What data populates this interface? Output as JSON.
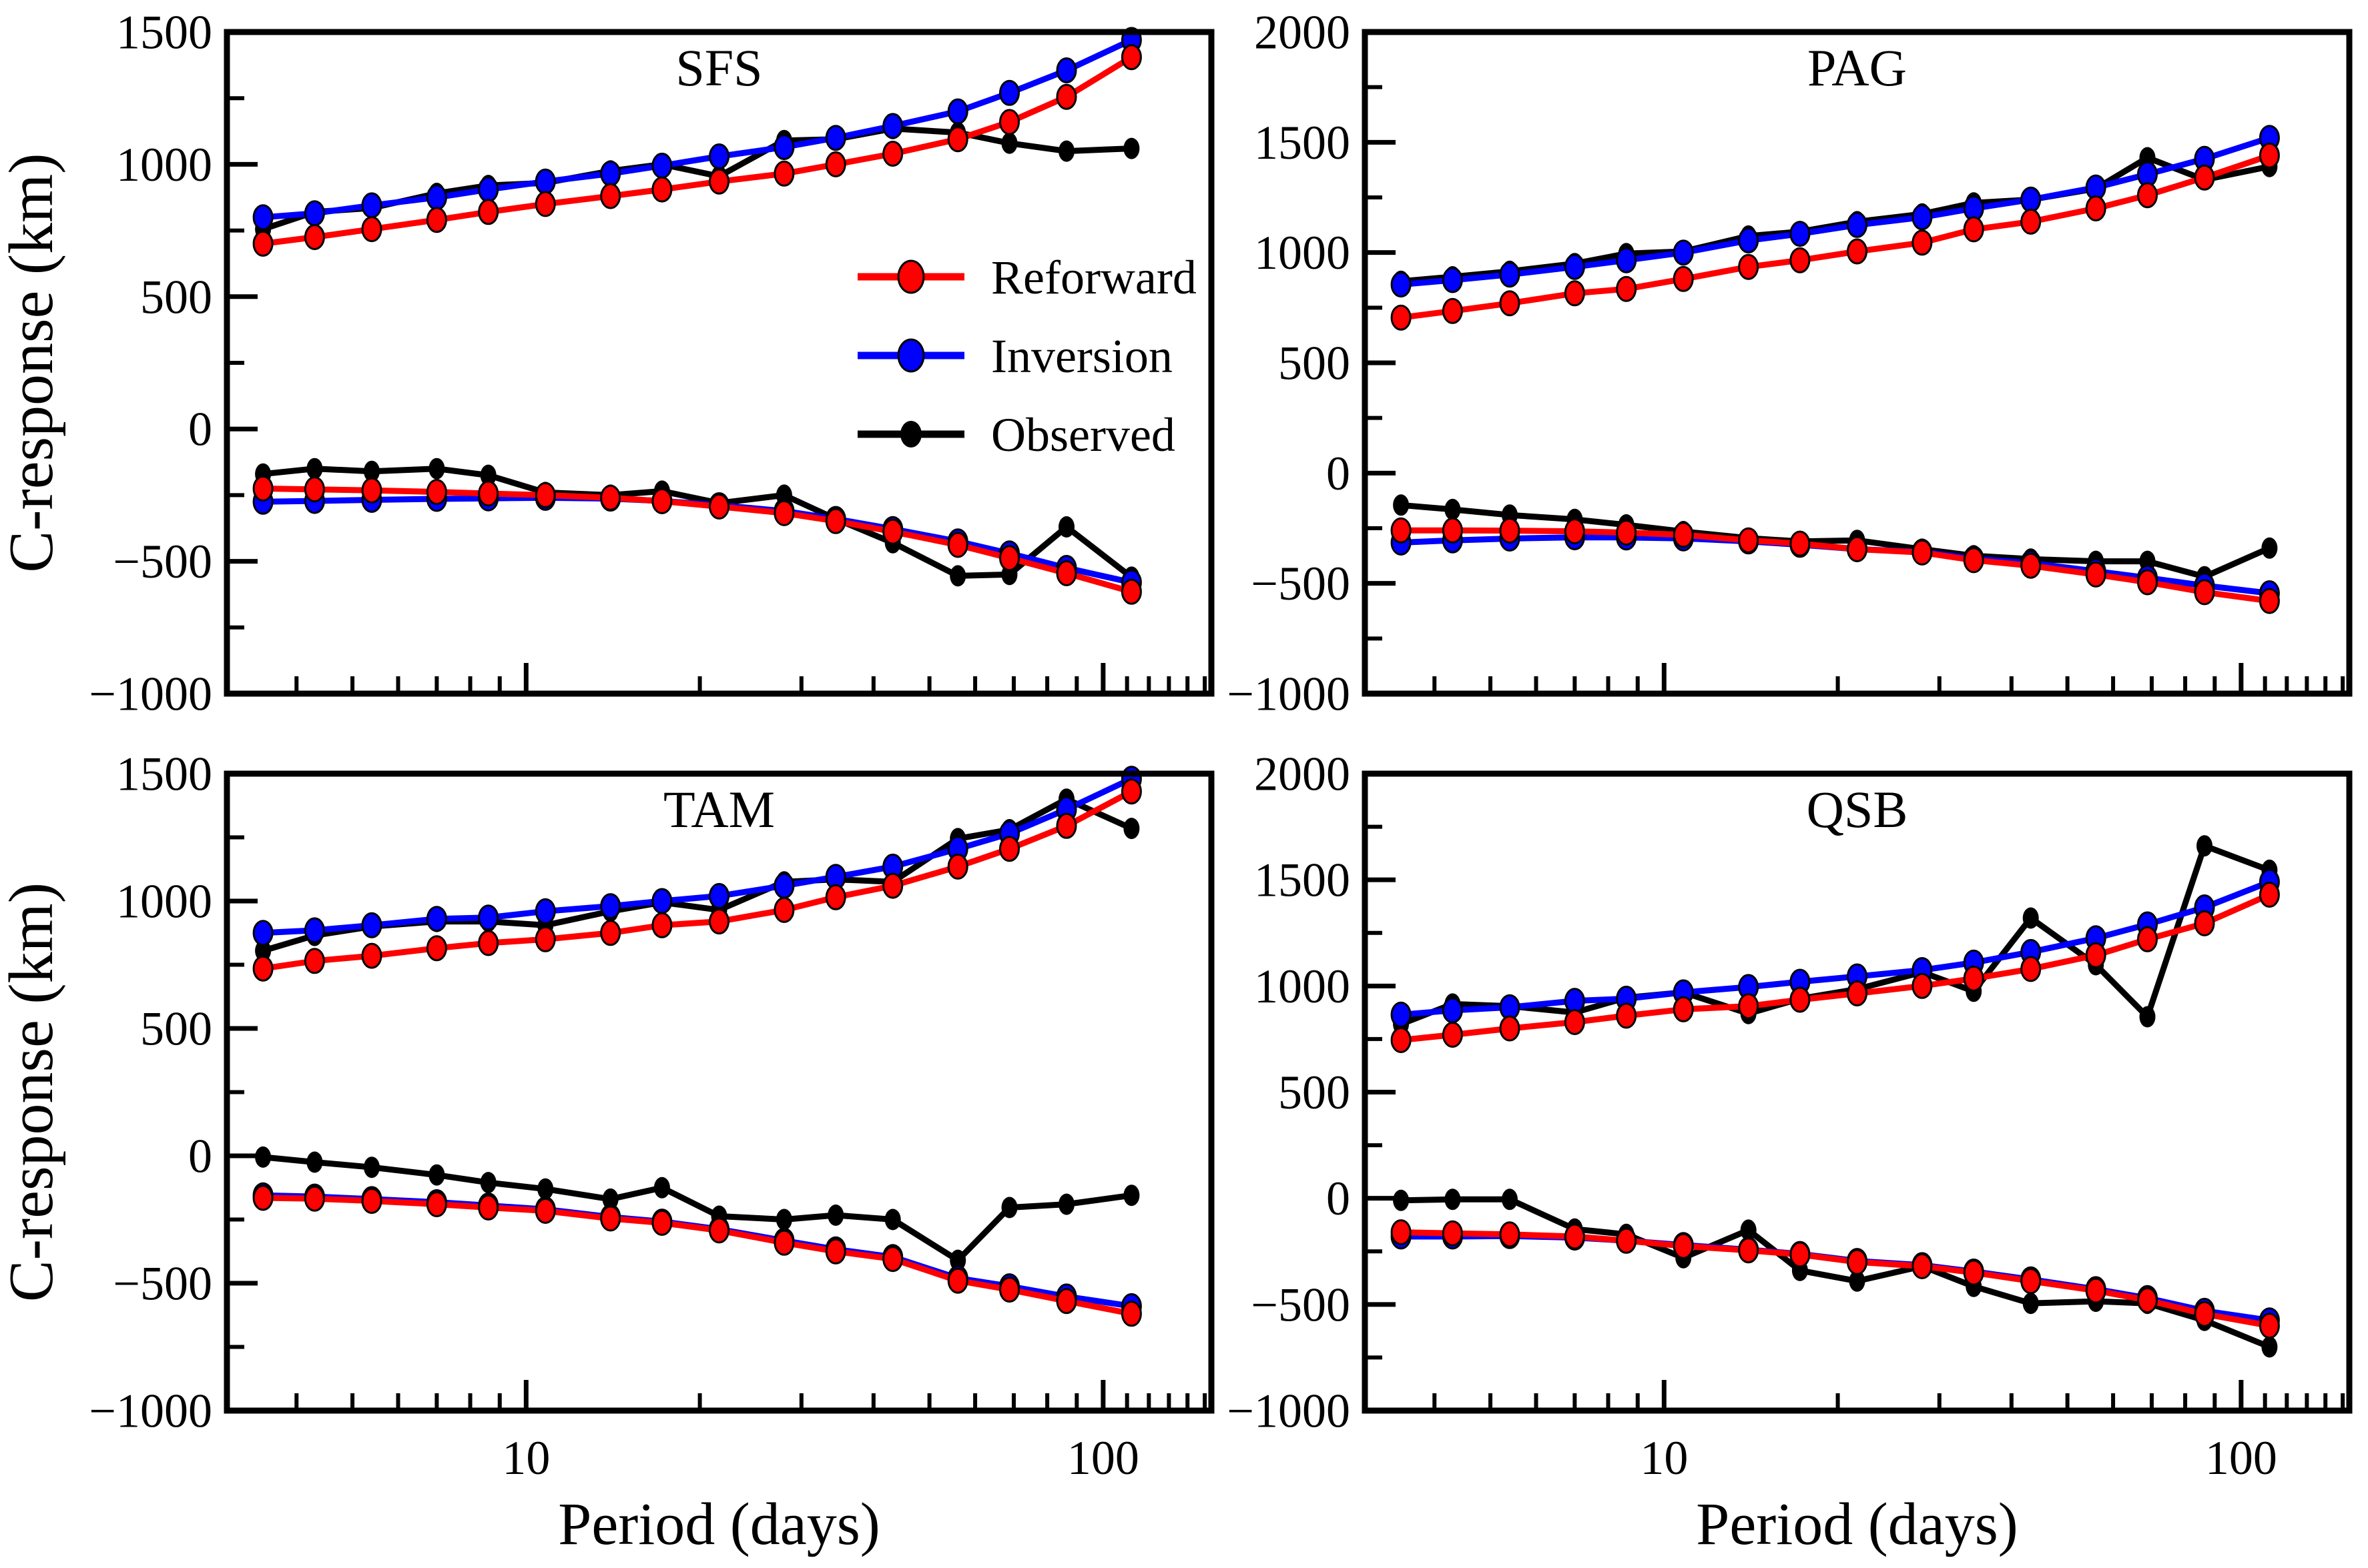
{
  "figure": {
    "background": "#ffffff",
    "xlabel": "Period (days)",
    "ylabel": "C-response (km)",
    "xtick_labels": [
      "10",
      "100"
    ],
    "legend": {
      "items": [
        {
          "label": "Reforward",
          "color": "#ff0000"
        },
        {
          "label": "Inversion",
          "color": "#0000ff"
        },
        {
          "label": "Observed",
          "color": "#000000"
        }
      ]
    }
  },
  "chart_data": [
    {
      "type": "line",
      "title": "SFS",
      "grid": {
        "row": 0,
        "col": 0
      },
      "xscale": "log",
      "xlabel": "Period (days)",
      "ylabel": "C-response (km)",
      "xlim": [
        3.03,
        154
      ],
      "ylim": [
        -1000,
        1500
      ],
      "x_days": [
        3.5,
        4.3,
        5.4,
        7.0,
        8.6,
        10.8,
        14,
        17.2,
        21.6,
        28,
        34.4,
        43.2,
        56,
        68.8,
        86.4,
        112
      ],
      "xticks_major_days": [
        10,
        100
      ],
      "xticks_minor_days": [
        4,
        5,
        6,
        7,
        8,
        9,
        20,
        30,
        40,
        50,
        60,
        70,
        80,
        90,
        110,
        120,
        130,
        140,
        150
      ],
      "ytick_values": [
        1500,
        1000,
        500,
        0,
        -500,
        -1000
      ],
      "ytick_labels": [
        "1500",
        "1000",
        "500",
        "0",
        "−500",
        "−1000"
      ],
      "ytick_minor_values": [
        1250,
        750,
        250,
        -250,
        -750
      ],
      "show_legend": true,
      "series": [
        {
          "name": "Observed",
          "color": "#000000",
          "real": [
            755,
            820,
            835,
            890,
            920,
            930,
            975,
            1000,
            955,
            1090,
            1095,
            1135,
            1120,
            1080,
            1050,
            1060
          ],
          "imag": [
            -170,
            -150,
            -160,
            -150,
            -175,
            -240,
            -250,
            -235,
            -280,
            -250,
            -340,
            -430,
            -555,
            -550,
            -370,
            -560
          ]
        },
        {
          "name": "Inversion",
          "color": "#0000ff",
          "real": [
            800,
            815,
            845,
            875,
            905,
            935,
            965,
            995,
            1030,
            1065,
            1100,
            1145,
            1200,
            1270,
            1355,
            1470
          ],
          "imag": [
            -275,
            -272,
            -268,
            -264,
            -262,
            -260,
            -263,
            -272,
            -288,
            -310,
            -340,
            -378,
            -425,
            -470,
            -525,
            -580
          ]
        },
        {
          "name": "Reforward",
          "color": "#ff0000",
          "real": [
            700,
            725,
            755,
            790,
            820,
            850,
            880,
            905,
            935,
            965,
            1000,
            1040,
            1095,
            1160,
            1255,
            1405
          ],
          "imag": [
            -225,
            -228,
            -232,
            -238,
            -244,
            -250,
            -260,
            -273,
            -293,
            -318,
            -348,
            -388,
            -438,
            -488,
            -545,
            -615
          ]
        }
      ]
    },
    {
      "type": "line",
      "title": "PAG",
      "grid": {
        "row": 0,
        "col": 1
      },
      "xscale": "log",
      "xlabel": "Period (days)",
      "ylabel": "C-response (km)",
      "xlim": [
        3.03,
        154
      ],
      "ylim": [
        -1000,
        2000
      ],
      "x_days": [
        3.5,
        4.3,
        5.4,
        7.0,
        8.6,
        10.8,
        14,
        17.2,
        21.6,
        28,
        34.4,
        43.2,
        56,
        68.8,
        86.4,
        112
      ],
      "xticks_major_days": [
        10,
        100
      ],
      "xticks_minor_days": [
        4,
        5,
        6,
        7,
        8,
        9,
        20,
        30,
        40,
        50,
        60,
        70,
        80,
        90,
        110,
        120,
        130,
        140,
        150
      ],
      "ytick_values": [
        2000,
        1500,
        1000,
        500,
        0,
        -500,
        -1000
      ],
      "ytick_labels": [
        "2000",
        "1500",
        "1000",
        "500",
        "0",
        "−500",
        "−1000"
      ],
      "ytick_minor_values": [
        1750,
        1250,
        750,
        250,
        -250,
        -750
      ],
      "show_legend": false,
      "series": [
        {
          "name": "Observed",
          "color": "#000000",
          "real": [
            870,
            890,
            915,
            950,
            995,
            1005,
            1075,
            1095,
            1140,
            1175,
            1225,
            1240,
            1290,
            1430,
            1330,
            1390
          ],
          "imag": [
            -145,
            -165,
            -190,
            -210,
            -235,
            -265,
            -295,
            -310,
            -305,
            -345,
            -375,
            -390,
            -400,
            -400,
            -470,
            -340
          ]
        },
        {
          "name": "Inversion",
          "color": "#0000ff",
          "real": [
            855,
            875,
            900,
            935,
            965,
            1000,
            1055,
            1085,
            1125,
            1160,
            1200,
            1240,
            1295,
            1355,
            1425,
            1520
          ],
          "imag": [
            -315,
            -305,
            -297,
            -291,
            -292,
            -296,
            -310,
            -325,
            -345,
            -357,
            -388,
            -408,
            -445,
            -475,
            -510,
            -545
          ]
        },
        {
          "name": "Reforward",
          "color": "#ff0000",
          "real": [
            705,
            735,
            770,
            815,
            835,
            880,
            935,
            965,
            1005,
            1045,
            1105,
            1140,
            1200,
            1260,
            1340,
            1440
          ],
          "imag": [
            -260,
            -260,
            -261,
            -264,
            -270,
            -280,
            -305,
            -320,
            -345,
            -360,
            -395,
            -420,
            -460,
            -495,
            -540,
            -580
          ]
        }
      ]
    },
    {
      "type": "line",
      "title": "TAM",
      "grid": {
        "row": 1,
        "col": 0
      },
      "xscale": "log",
      "xlabel": "Period (days)",
      "ylabel": "C-response (km)",
      "xlim": [
        3.03,
        154
      ],
      "ylim": [
        -1000,
        1500
      ],
      "x_days": [
        3.5,
        4.3,
        5.4,
        7.0,
        8.6,
        10.8,
        14,
        17.2,
        21.6,
        28,
        34.4,
        43.2,
        56,
        68.8,
        86.4,
        112
      ],
      "xticks_major_days": [
        10,
        100
      ],
      "xticks_minor_days": [
        4,
        5,
        6,
        7,
        8,
        9,
        20,
        30,
        40,
        50,
        60,
        70,
        80,
        90,
        110,
        120,
        130,
        140,
        150
      ],
      "ytick_values": [
        1500,
        1000,
        500,
        0,
        -500,
        -1000
      ],
      "ytick_labels": [
        "1500",
        "1000",
        "500",
        "0",
        "−500",
        "−1000"
      ],
      "ytick_minor_values": [
        1250,
        750,
        250,
        -250,
        -750
      ],
      "show_legend": false,
      "series": [
        {
          "name": "Observed",
          "color": "#000000",
          "real": [
            805,
            865,
            900,
            920,
            920,
            905,
            960,
            995,
            965,
            1075,
            1085,
            1075,
            1245,
            1280,
            1400,
            1285
          ],
          "imag": [
            -5,
            -25,
            -45,
            -75,
            -105,
            -130,
            -170,
            -125,
            -237,
            -250,
            -233,
            -250,
            -410,
            -203,
            -190,
            -155
          ]
        },
        {
          "name": "Inversion",
          "color": "#0000ff",
          "real": [
            875,
            885,
            905,
            930,
            935,
            960,
            980,
            1000,
            1020,
            1060,
            1095,
            1135,
            1205,
            1265,
            1360,
            1480
          ],
          "imag": [
            -155,
            -160,
            -170,
            -182,
            -195,
            -210,
            -240,
            -258,
            -288,
            -333,
            -367,
            -397,
            -480,
            -512,
            -552,
            -590
          ]
        },
        {
          "name": "Reforward",
          "color": "#ff0000",
          "real": [
            735,
            765,
            785,
            815,
            835,
            850,
            875,
            905,
            920,
            965,
            1015,
            1060,
            1135,
            1205,
            1295,
            1430
          ],
          "imag": [
            -165,
            -168,
            -177,
            -190,
            -203,
            -216,
            -246,
            -263,
            -293,
            -341,
            -375,
            -405,
            -490,
            -525,
            -570,
            -620
          ]
        }
      ]
    },
    {
      "type": "line",
      "title": "QSB",
      "grid": {
        "row": 1,
        "col": 1
      },
      "xscale": "log",
      "xlabel": "Period (days)",
      "ylabel": "C-response (km)",
      "xlim": [
        3.03,
        154
      ],
      "ylim": [
        -1000,
        2000
      ],
      "x_days": [
        3.5,
        4.3,
        5.4,
        7.0,
        8.6,
        10.8,
        14,
        17.2,
        21.6,
        28,
        34.4,
        43.2,
        56,
        68.8,
        86.4,
        112
      ],
      "xticks_major_days": [
        10,
        100
      ],
      "xticks_minor_days": [
        4,
        5,
        6,
        7,
        8,
        9,
        20,
        30,
        40,
        50,
        60,
        70,
        80,
        90,
        110,
        120,
        130,
        140,
        150
      ],
      "ytick_values": [
        2000,
        1500,
        1000,
        500,
        0,
        -500,
        -1000
      ],
      "ytick_labels": [
        "2000",
        "1500",
        "1000",
        "500",
        "0",
        "−500",
        "−1000"
      ],
      "ytick_minor_values": [
        1750,
        1250,
        750,
        250,
        -250,
        -750
      ],
      "show_legend": false,
      "series": [
        {
          "name": "Observed",
          "color": "#000000",
          "real": [
            820,
            915,
            905,
            875,
            945,
            970,
            870,
            940,
            985,
            1065,
            975,
            1320,
            1100,
            855,
            1660,
            1545
          ],
          "imag": [
            -10,
            -5,
            -5,
            -145,
            -170,
            -280,
            -150,
            -340,
            -390,
            -320,
            -415,
            -495,
            -485,
            -495,
            -575,
            -700
          ]
        },
        {
          "name": "Inversion",
          "color": "#0000ff",
          "real": [
            865,
            885,
            900,
            930,
            940,
            970,
            995,
            1020,
            1045,
            1075,
            1110,
            1160,
            1225,
            1290,
            1370,
            1490
          ],
          "imag": [
            -180,
            -180,
            -178,
            -185,
            -200,
            -220,
            -242,
            -262,
            -295,
            -315,
            -345,
            -382,
            -428,
            -470,
            -530,
            -575
          ]
        },
        {
          "name": "Reforward",
          "color": "#ff0000",
          "real": [
            745,
            770,
            800,
            830,
            860,
            890,
            905,
            935,
            965,
            1000,
            1035,
            1080,
            1145,
            1220,
            1295,
            1430
          ],
          "imag": [
            -160,
            -165,
            -170,
            -180,
            -200,
            -225,
            -245,
            -265,
            -300,
            -320,
            -350,
            -390,
            -435,
            -480,
            -545,
            -600
          ]
        }
      ]
    }
  ]
}
